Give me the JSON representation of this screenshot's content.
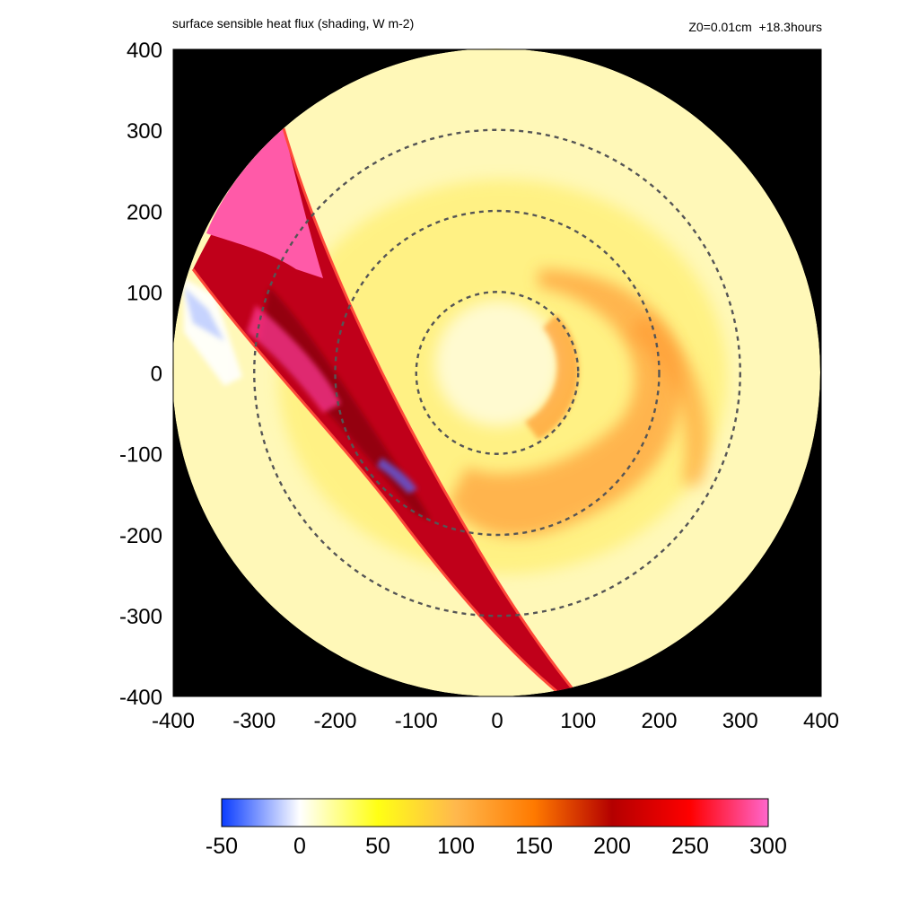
{
  "header": {
    "title": "surface sensible heat flux (shading, W m-2)",
    "run_info": "Z0=0.01cm  +18.3hours"
  },
  "chart_data": {
    "type": "heatmap",
    "title": "surface sensible heat flux (shading, W m-2)",
    "annotation": "Z0=0.01cm  +18.3hours",
    "xlim": [
      -400,
      400
    ],
    "ylim": [
      -400,
      400
    ],
    "x_ticks": [
      "-400",
      "-300",
      "-200",
      "-100",
      "0",
      "100",
      "200",
      "300",
      "400"
    ],
    "y_ticks": [
      "400",
      "300",
      "200",
      "100",
      "0",
      "-100",
      "-200",
      "-300",
      "-400"
    ],
    "domain_radius": 400,
    "outside_domain_color": "#000000",
    "range_rings": [
      {
        "radius": 100,
        "style": "dashed"
      },
      {
        "radius": 200,
        "style": "dashed"
      },
      {
        "radius": 300,
        "style": "dashed"
      }
    ],
    "colorbar": {
      "min": -50,
      "max": 300,
      "tick_labels": [
        "-50",
        "0",
        "50",
        "100",
        "150",
        "200",
        "250",
        "300"
      ],
      "stops": [
        {
          "value": -50,
          "color": "#0a3cff"
        },
        {
          "value": 0,
          "color": "#ffffff"
        },
        {
          "value": 50,
          "color": "#ffff14"
        },
        {
          "value": 100,
          "color": "#ffb84d"
        },
        {
          "value": 150,
          "color": "#ff7a00"
        },
        {
          "value": 200,
          "color": "#b40000"
        },
        {
          "value": 250,
          "color": "#ff0000"
        },
        {
          "value": 300,
          "color": "#ff66cc"
        }
      ]
    },
    "features": [
      {
        "region": "background",
        "approx_value": 20
      },
      {
        "region": "eye core",
        "approx_value": 10
      },
      {
        "region": "inner core ring",
        "approx_value": 80
      },
      {
        "region": "east-southeast spiral band",
        "approx_value": 120
      },
      {
        "region": "northwest-southeast diagonal strip",
        "approx_value": 220
      },
      {
        "region": "northwest strip edge",
        "approx_value": 290
      },
      {
        "region": "west edge",
        "approx_value": -20
      }
    ]
  }
}
